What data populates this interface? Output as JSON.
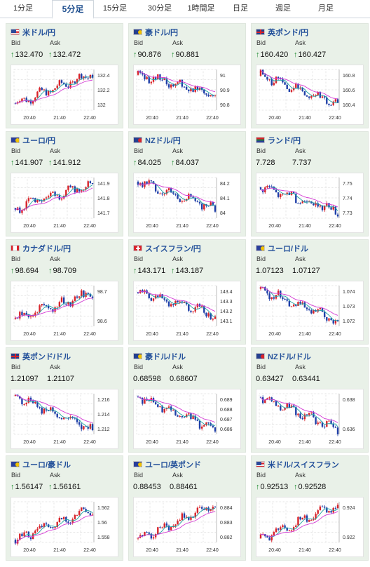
{
  "tabs": [
    {
      "label": "1分足",
      "active": false
    },
    {
      "label": "5分足",
      "active": true
    },
    {
      "label": "15分足",
      "active": false
    },
    {
      "label": "30分足",
      "active": false
    },
    {
      "label": "1時間足",
      "active": false
    },
    {
      "label": "日足",
      "active": false
    },
    {
      "label": "週足",
      "active": false
    },
    {
      "label": "月足",
      "active": false
    }
  ],
  "labels": {
    "bid": "Bid",
    "ask": "Ask",
    "up_arrow": "↑"
  },
  "colors": {
    "up_candle": "#d8232a",
    "down_candle": "#1f3fa8",
    "ma_short": "#1fa3a3",
    "ma_long": "#d43ad4",
    "card_bg": "#e9f1e8",
    "title": "#23509a",
    "arrow": "#1d8a2e"
  },
  "cards": [
    {
      "pair": "米ドル/円",
      "flag": "us-jp",
      "bid": "132.470",
      "ask": "132.472",
      "arrow": true,
      "chart_data": {
        "type": "candlestick",
        "x_ticks": [
          "20:40",
          "21:40",
          "22:40"
        ],
        "y_ticks": [
          "132.4",
          "132.2",
          "132"
        ],
        "ylim": [
          131.88,
          132.48
        ],
        "trend": [
          131.98,
          132.42
        ]
      }
    },
    {
      "pair": "豪ドル/円",
      "flag": "au-jp",
      "bid": "90.876",
      "ask": "90.881",
      "arrow": true,
      "chart_data": {
        "type": "candlestick",
        "x_ticks": [
          "20:40",
          "21:40",
          "22:40"
        ],
        "y_ticks": [
          "91",
          "90.9",
          "90.8"
        ],
        "ylim": [
          90.76,
          91.06
        ],
        "trend": [
          91.02,
          90.88
        ]
      }
    },
    {
      "pair": "英ポンド/円",
      "flag": "gb-jp",
      "bid": "160.420",
      "ask": "160.427",
      "arrow": true,
      "chart_data": {
        "type": "candlestick",
        "x_ticks": [
          "20:40",
          "21:40",
          "22:40"
        ],
        "y_ticks": [
          "160.8",
          "160.6",
          "160.4"
        ],
        "ylim": [
          160.34,
          160.86
        ],
        "trend": [
          160.78,
          160.42
        ]
      }
    },
    {
      "pair": "ユーロ/円",
      "flag": "eu-jp",
      "bid": "141.907",
      "ask": "141.912",
      "arrow": true,
      "chart_data": {
        "type": "candlestick",
        "x_ticks": [
          "20:40",
          "21:40",
          "22:40"
        ],
        "y_ticks": [
          "141.9",
          "141.8",
          "141.7"
        ],
        "ylim": [
          141.64,
          141.96
        ],
        "trend": [
          141.72,
          141.91
        ]
      }
    },
    {
      "pair": "NZドル/円",
      "flag": "nz-jp",
      "bid": "84.025",
      "ask": "84.037",
      "arrow": true,
      "chart_data": {
        "type": "candlestick",
        "x_ticks": [
          "20:40",
          "21:40",
          "22:40"
        ],
        "y_ticks": [
          "84.2",
          "84.1",
          "84"
        ],
        "ylim": [
          83.95,
          84.25
        ],
        "trend": [
          84.22,
          84.02
        ]
      }
    },
    {
      "pair": "ランド/円",
      "flag": "za-jp",
      "bid": "7.728",
      "ask": "7.737",
      "arrow": false,
      "chart_data": {
        "type": "candlestick",
        "x_ticks": [
          "20:40",
          "21:40",
          "22:40"
        ],
        "y_ticks": [
          "7.75",
          "7.74",
          "7.73"
        ],
        "ylim": [
          7.722,
          7.756
        ],
        "trend": [
          7.748,
          7.728
        ]
      }
    },
    {
      "pair": "カナダドル/円",
      "flag": "ca-jp",
      "bid": "98.694",
      "ask": "98.709",
      "arrow": true,
      "chart_data": {
        "type": "candlestick",
        "x_ticks": [
          "20:40",
          "21:40",
          "22:40"
        ],
        "y_ticks": [
          "98.7",
          "98.6"
        ],
        "ylim": [
          98.52,
          98.74
        ],
        "trend": [
          98.56,
          98.7
        ]
      }
    },
    {
      "pair": "スイスフラン/円",
      "flag": "ch-jp",
      "bid": "143.171",
      "ask": "143.187",
      "arrow": true,
      "chart_data": {
        "type": "candlestick",
        "x_ticks": [
          "20:40",
          "21:40",
          "22:40"
        ],
        "y_ticks": [
          "143.4",
          "143.3",
          "143.2",
          "143.1"
        ],
        "ylim": [
          143.06,
          143.44
        ],
        "trend": [
          143.38,
          143.17
        ]
      }
    },
    {
      "pair": "ユーロ/ドル",
      "flag": "eu-us",
      "bid": "1.07123",
      "ask": "1.07127",
      "arrow": false,
      "chart_data": {
        "type": "candlestick",
        "x_ticks": [
          "20:40",
          "21:40",
          "22:40"
        ],
        "y_ticks": [
          "1.074",
          "1.073",
          "1.072"
        ],
        "ylim": [
          1.0708,
          1.0745
        ],
        "trend": [
          1.0742,
          1.0712
        ]
      }
    },
    {
      "pair": "英ポンド/ドル",
      "flag": "gb-us",
      "bid": "1.21097",
      "ask": "1.21107",
      "arrow": false,
      "chart_data": {
        "type": "candlestick",
        "x_ticks": [
          "20:40",
          "21:40",
          "22:40"
        ],
        "y_ticks": [
          "1.216",
          "1.214",
          "1.212"
        ],
        "ylim": [
          1.2104,
          1.2172
        ],
        "trend": [
          1.2168,
          1.211
        ]
      }
    },
    {
      "pair": "豪ドル/ドル",
      "flag": "au-us",
      "bid": "0.68598",
      "ask": "0.68607",
      "arrow": false,
      "chart_data": {
        "type": "candlestick",
        "x_ticks": [
          "20:40",
          "21:40",
          "22:40"
        ],
        "y_ticks": [
          "0.689",
          "0.688",
          "0.687",
          "0.686"
        ],
        "ylim": [
          0.6855,
          0.6896
        ],
        "trend": [
          0.6893,
          0.686
        ]
      }
    },
    {
      "pair": "NZドル/ドル",
      "flag": "nz-us",
      "bid": "0.63427",
      "ask": "0.63441",
      "arrow": false,
      "chart_data": {
        "type": "candlestick",
        "x_ticks": [
          "20:40",
          "21:40",
          "22:40"
        ],
        "y_ticks": [
          "0.638",
          "0.636"
        ],
        "ylim": [
          0.6336,
          0.6386
        ],
        "trend": [
          0.6382,
          0.6342
        ]
      }
    },
    {
      "pair": "ユーロ/豪ドル",
      "flag": "eu-au",
      "bid": "1.56147",
      "ask": "1.56161",
      "arrow": true,
      "chart_data": {
        "type": "candlestick",
        "x_ticks": [
          "20:40",
          "21:40",
          "22:40"
        ],
        "y_ticks": [
          "1.562",
          "1.56",
          "1.558"
        ],
        "ylim": [
          1.5568,
          1.5626
        ],
        "trend": [
          1.5572,
          1.5615
        ]
      }
    },
    {
      "pair": "ユーロ/英ポンド",
      "flag": "eu-gb",
      "bid": "0.88453",
      "ask": "0.88461",
      "arrow": false,
      "chart_data": {
        "type": "candlestick",
        "x_ticks": [
          "20:40",
          "21:40",
          "22:40"
        ],
        "y_ticks": [
          "0.884",
          "0.883",
          "0.882"
        ],
        "ylim": [
          0.8817,
          0.8848
        ],
        "trend": [
          0.882,
          0.8846
        ]
      }
    },
    {
      "pair": "米ドル/スイスフラン",
      "flag": "us-ch",
      "bid": "0.92513",
      "ask": "0.92528",
      "arrow": true,
      "chart_data": {
        "type": "candlestick",
        "x_ticks": [
          "20:40",
          "21:40",
          "22:40"
        ],
        "y_ticks": [
          "0.924",
          "0.922"
        ],
        "ylim": [
          0.9205,
          0.9256
        ],
        "trend": [
          0.921,
          0.9252
        ]
      }
    }
  ]
}
